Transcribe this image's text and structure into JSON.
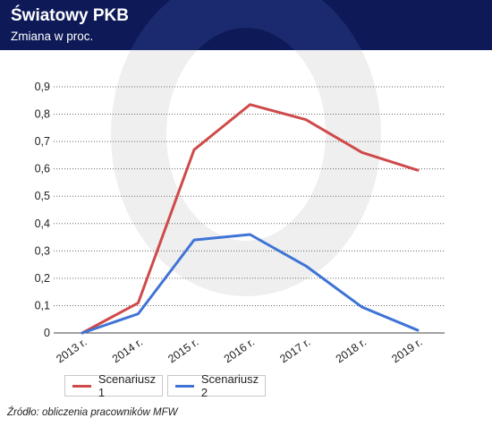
{
  "header": {
    "title": "Światowy PKB",
    "subtitle": "Zmiana w proc.",
    "background": "#0e1a57"
  },
  "chart_data": {
    "type": "line",
    "categories": [
      "2013 r.",
      "2014 r.",
      "2015 r.",
      "2016 r.",
      "2017 r.",
      "2018 r.",
      "2019 r."
    ],
    "series": [
      {
        "name": "Scenariusz 1",
        "color": "#cf4a4a",
        "values": [
          0.0,
          0.11,
          0.67,
          0.835,
          0.78,
          0.66,
          0.595
        ]
      },
      {
        "name": "Scenariusz 2",
        "color": "#3f74d6",
        "values": [
          0.0,
          0.07,
          0.34,
          0.36,
          0.245,
          0.095,
          0.01
        ]
      }
    ],
    "y_ticks": [
      "0",
      "0,1",
      "0,2",
      "0,3",
      "0,4",
      "0,5",
      "0,6",
      "0,7",
      "0,8",
      "0,9"
    ],
    "ylim": [
      0,
      0.9
    ],
    "grid": "dotted horizontal",
    "legend_position": "bottom-left"
  },
  "source": "Źródło: obliczenia pracowników MFW"
}
